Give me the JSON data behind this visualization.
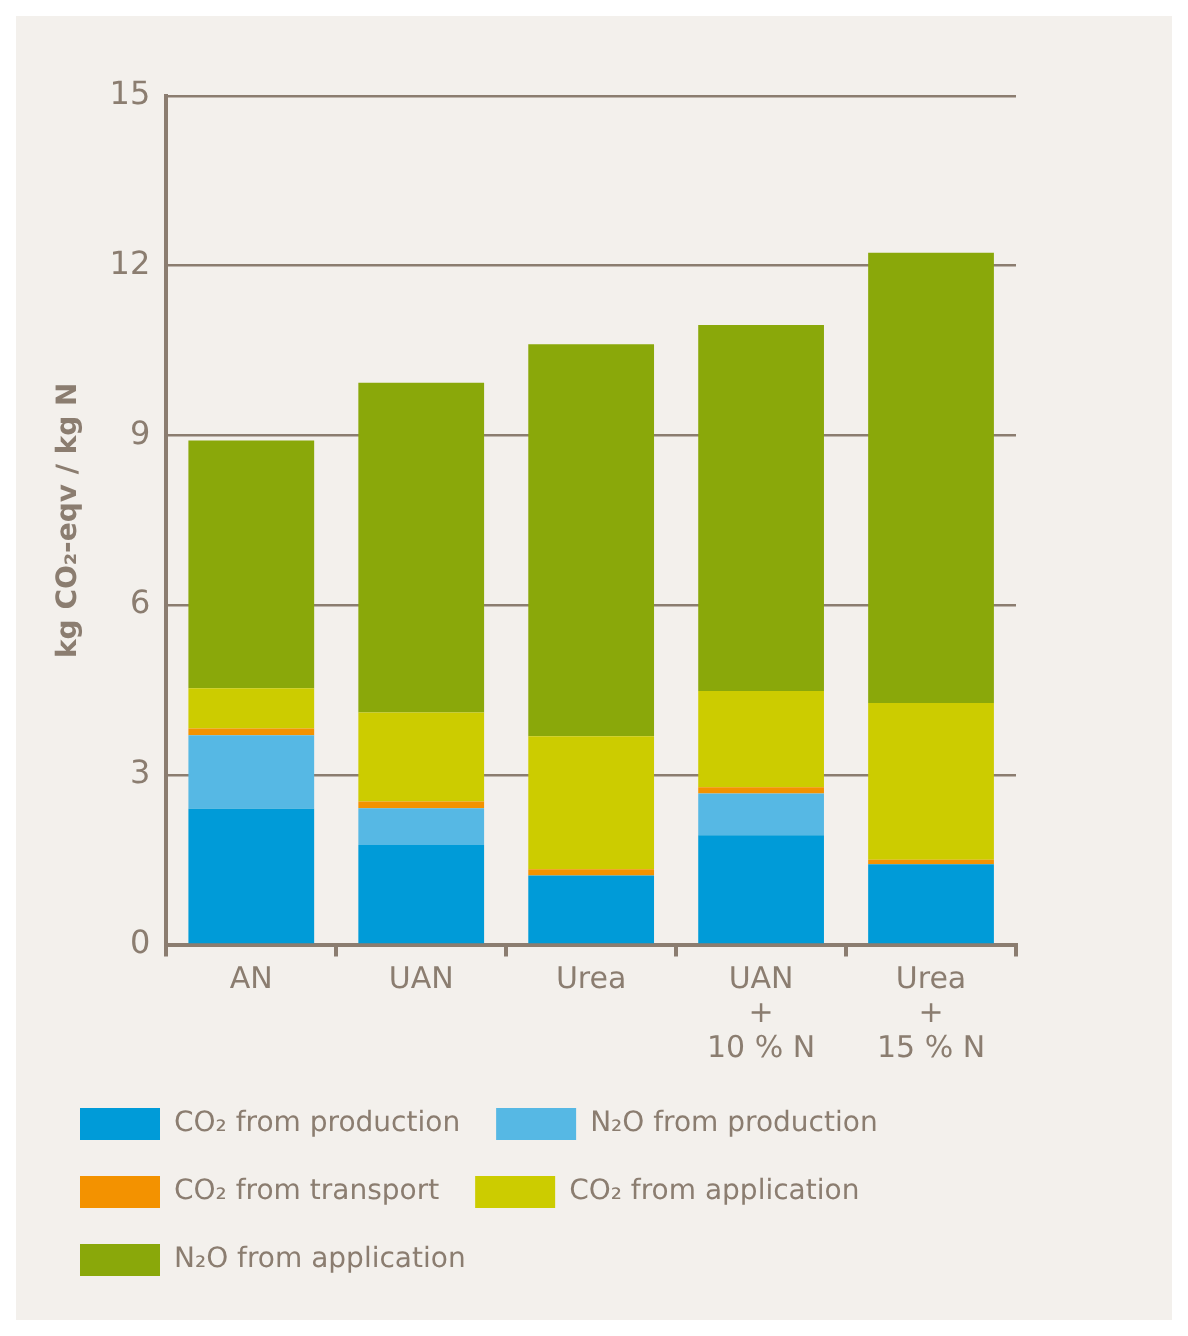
{
  "chart_data": {
    "type": "bar",
    "stacked": true,
    "ylabel": "kg CO₂-eqv / kg N",
    "categories": [
      "AN",
      "UAN",
      "Urea",
      "UAN\n+\n10 % N",
      "Urea\n+\n15 % N"
    ],
    "series": [
      {
        "name": "CO₂ from production",
        "color": "#009bd8",
        "values": [
          2.4,
          1.76,
          1.22,
          1.93,
          1.42
        ]
      },
      {
        "name": "N₂O from production",
        "color": "#56b8e4",
        "values": [
          1.3,
          0.65,
          0,
          0.74,
          0
        ]
      },
      {
        "name": "CO₂ from transport",
        "color": "#f39200",
        "values": [
          0.12,
          0.12,
          0.11,
          0.11,
          0.08
        ]
      },
      {
        "name": "CO₂ from application",
        "color": "#cccc00",
        "values": [
          0.71,
          1.57,
          2.35,
          1.7,
          2.77
        ]
      },
      {
        "name": "N₂O from application",
        "color": "#8aa80a",
        "values": [
          4.38,
          5.83,
          6.93,
          6.47,
          7.96
        ]
      }
    ],
    "ylim": [
      0,
      15
    ],
    "yticks": [
      0,
      3,
      6,
      9,
      12,
      15
    ],
    "grid": "y",
    "legend": "bottom"
  }
}
